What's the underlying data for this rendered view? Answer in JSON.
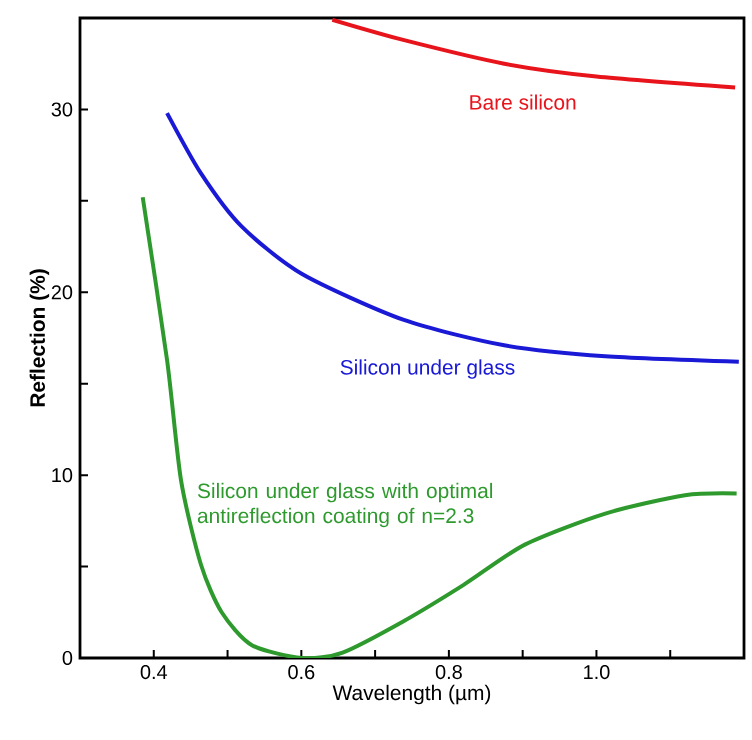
{
  "chart_data": {
    "type": "line",
    "xlabel": "Wavelength (µm)",
    "ylabel": "Reflection (%)",
    "xlim": [
      0.3,
      1.2
    ],
    "ylim": [
      0,
      35
    ],
    "xticks": [
      0.4,
      {
        "value": 0.5,
        "label": null
      },
      0.6,
      {
        "value": 0.7,
        "label": null
      },
      0.8,
      {
        "value": 0.9,
        "label": null
      },
      {
        "value": 1.0,
        "label": "1.0"
      },
      {
        "value": 1.1,
        "label": null
      }
    ],
    "yticks": [
      0,
      {
        "value": 5,
        "label": null
      },
      10,
      {
        "value": 15,
        "label": null
      },
      20,
      {
        "value": 25,
        "label": null
      },
      30
    ],
    "grid": false,
    "legend": false,
    "marker": "none",
    "line_style": "solid",
    "series": [
      {
        "name": "Bare silicon",
        "color": "#e8141c",
        "x": [
          0.642,
          0.738,
          0.875,
          1.0,
          1.188
        ],
        "values": [
          34.9,
          33.8,
          32.5,
          31.8,
          31.2
        ]
      },
      {
        "name": "Silicon under glass",
        "color": "#1a1ad6",
        "x": [
          0.418,
          0.464,
          0.519,
          0.601,
          0.738,
          0.875,
          1.012,
          1.193
        ],
        "values": [
          29.8,
          26.5,
          23.6,
          21.0,
          18.5,
          17.1,
          16.5,
          16.2
        ]
      },
      {
        "name": "Silicon under glass with optimal antireflection coating of n=2.3",
        "color": "#2e9a2e",
        "x": [
          0.385,
          0.418,
          0.437,
          0.464,
          0.492,
          0.533,
          0.601,
          0.656,
          0.738,
          0.82,
          0.903,
          1.012,
          1.12,
          1.19
        ],
        "values": [
          25.2,
          16.3,
          9.7,
          5.1,
          2.5,
          0.7,
          0.0,
          0.3,
          2.0,
          4.0,
          6.2,
          7.9,
          8.9,
          9.0
        ]
      }
    ]
  }
}
